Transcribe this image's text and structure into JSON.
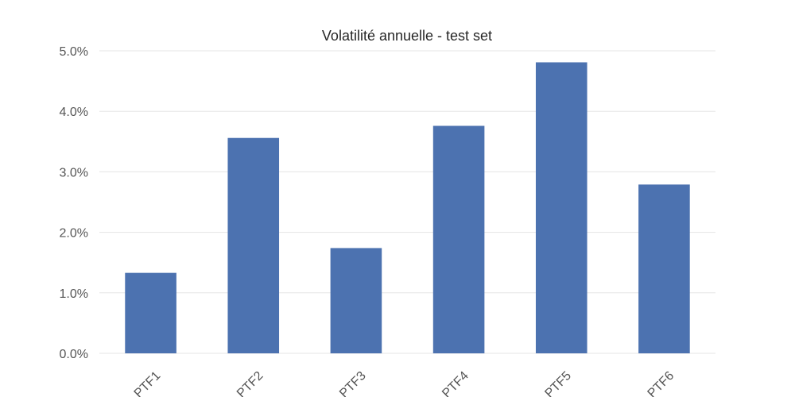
{
  "chart_data": {
    "type": "bar",
    "title": "Volatilité annuelle - test set",
    "xlabel": "",
    "ylabel": "",
    "categories": [
      "PTF1",
      "PTF2",
      "PTF3",
      "PTF4",
      "PTF5",
      "PTF6"
    ],
    "values": [
      1.33,
      3.56,
      1.74,
      3.76,
      4.81,
      2.79
    ],
    "unit": "%",
    "ylim": [
      0,
      5
    ],
    "yticks": [
      "0.0%",
      "1.0%",
      "2.0%",
      "3.0%",
      "4.0%",
      "5.0%"
    ],
    "grid": true,
    "legend": "none",
    "bar_color": "#4c72b0",
    "xtick_rotation_deg": 45
  }
}
